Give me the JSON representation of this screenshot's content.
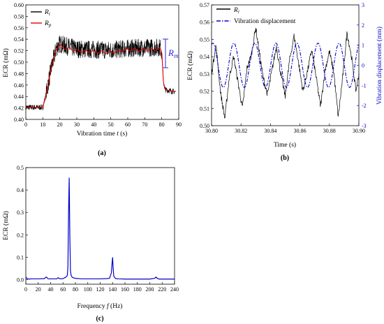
{
  "chart_data": [
    {
      "id": "a",
      "type": "line",
      "panel_label": "(a)",
      "xlabel": "Vibration time t (s)",
      "ylabel": "ECR (mΩ)",
      "xlim": [
        0,
        90
      ],
      "ylim": [
        0.4,
        0.6
      ],
      "xticks": [
        "0",
        "10",
        "20",
        "30",
        "40",
        "50",
        "60",
        "70",
        "80",
        "90"
      ],
      "yticks": [
        "0.40",
        "0.42",
        "0.44",
        "0.46",
        "0.48",
        "0.50",
        "0.52",
        "0.54",
        "0.56",
        "0.58",
        "0.60"
      ],
      "legend": [
        "Ri",
        "Rp"
      ],
      "annotation": "Rm",
      "series": [
        {
          "name": "Ri",
          "color": "#000000",
          "x": [
            0,
            10,
            12,
            15,
            18,
            20,
            25,
            30,
            40,
            50,
            60,
            70,
            79,
            80,
            81,
            82,
            85,
            88
          ],
          "y": [
            0.421,
            0.421,
            0.445,
            0.49,
            0.525,
            0.532,
            0.527,
            0.523,
            0.522,
            0.521,
            0.524,
            0.525,
            0.526,
            0.52,
            0.465,
            0.452,
            0.45,
            0.448
          ]
        },
        {
          "name": "Rp",
          "color": "#e60000",
          "x": [
            0,
            10,
            12,
            15,
            18,
            20,
            22,
            25,
            30,
            40,
            50,
            60,
            70,
            79,
            80,
            81,
            82,
            85,
            88
          ],
          "y": [
            0.421,
            0.421,
            0.445,
            0.49,
            0.523,
            0.53,
            0.525,
            0.524,
            0.52,
            0.518,
            0.517,
            0.522,
            0.521,
            0.523,
            0.518,
            0.465,
            0.452,
            0.45,
            0.448
          ]
        }
      ]
    },
    {
      "id": "b",
      "type": "line",
      "panel_label": "(b)",
      "xlabel": "Time (s)",
      "ylabel": "ECR (mΩ)",
      "y2label": "Vibration displacement (mm)",
      "xlim": [
        30.8,
        30.9
      ],
      "ylim": [
        0.5,
        0.57
      ],
      "y2lim": [
        -3,
        3
      ],
      "xticks": [
        "30.80",
        "30.82",
        "30.84",
        "30.86",
        "30.88",
        "30.90"
      ],
      "yticks": [
        "0.50",
        "0.51",
        "0.52",
        "0.53",
        "0.54",
        "0.55",
        "0.56",
        "0.57"
      ],
      "y2ticks": [
        "-3",
        "-2",
        "-1",
        "0",
        "1",
        "2",
        "3"
      ],
      "legend": [
        "Ri",
        "Vibration displacement"
      ],
      "series": [
        {
          "name": "Ri",
          "color": "#000000",
          "axis": "left",
          "x": [
            30.8,
            30.803,
            30.806,
            30.809,
            30.812,
            30.815,
            30.818,
            30.821,
            30.824,
            30.827,
            30.83,
            30.832,
            30.835,
            30.838,
            30.841,
            30.844,
            30.847,
            30.85,
            30.853,
            30.856,
            30.859,
            30.862,
            30.865,
            30.868,
            30.871,
            30.874,
            30.877,
            30.88,
            30.883,
            30.886,
            30.889,
            30.892,
            30.895,
            30.898,
            30.9
          ],
          "y": [
            0.53,
            0.547,
            0.52,
            0.504,
            0.528,
            0.54,
            0.525,
            0.51,
            0.533,
            0.541,
            0.557,
            0.545,
            0.528,
            0.518,
            0.532,
            0.546,
            0.53,
            0.517,
            0.538,
            0.552,
            0.537,
            0.52,
            0.531,
            0.544,
            0.528,
            0.511,
            0.532,
            0.543,
            0.531,
            0.505,
            0.528,
            0.554,
            0.54,
            0.52,
            0.53
          ]
        },
        {
          "name": "Vibration displacement",
          "color": "#0000cc",
          "axis": "right",
          "amplitude_mm": 1.1,
          "frequency_hz": 70
        }
      ]
    },
    {
      "id": "c",
      "type": "line",
      "panel_label": "(c)",
      "xlabel": "Frequency f (Hz)",
      "ylabel": "ECR (mΩ)",
      "xlim": [
        0,
        240
      ],
      "ylim": [
        -0.02,
        0.5
      ],
      "xticks": [
        "0",
        "20",
        "40",
        "60",
        "80",
        "100",
        "120",
        "140",
        "160",
        "180",
        "200",
        "220",
        "240"
      ],
      "yticks": [
        "0.0",
        "0.1",
        "0.2",
        "0.3",
        "0.4",
        "0.5"
      ],
      "series": [
        {
          "name": "",
          "color": "#0000cc",
          "x": [
            0,
            2,
            5,
            10,
            20,
            30,
            33,
            36,
            40,
            50,
            52,
            55,
            60,
            65,
            67,
            68,
            69,
            70,
            71,
            72,
            73,
            75,
            80,
            90,
            100,
            110,
            120,
            130,
            135,
            138,
            139,
            140,
            141,
            142,
            145,
            150,
            160,
            180,
            200,
            208,
            210,
            212,
            215,
            220,
            240
          ],
          "y": [
            0.012,
            0.005,
            0.003,
            0.004,
            0.004,
            0.005,
            0.012,
            0.004,
            0.004,
            0.004,
            0.009,
            0.004,
            0.005,
            0.012,
            0.02,
            0.06,
            0.3,
            0.455,
            0.2,
            0.04,
            0.02,
            0.01,
            0.006,
            0.004,
            0.004,
            0.004,
            0.004,
            0.005,
            0.006,
            0.03,
            0.07,
            0.1,
            0.05,
            0.015,
            0.005,
            0.004,
            0.003,
            0.003,
            0.003,
            0.006,
            0.012,
            0.006,
            0.003,
            0.003,
            0.003
          ]
        }
      ]
    }
  ]
}
